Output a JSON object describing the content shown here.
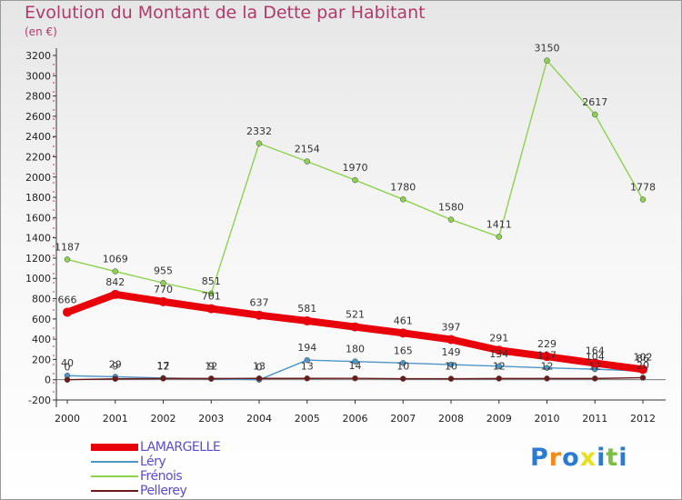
{
  "title": "Evolution du Montant de la Dette par Habitant",
  "unit_label": "(en €)",
  "brand": {
    "letters": [
      "P",
      "r",
      "o",
      "x",
      "i",
      "t",
      "i"
    ],
    "colors": [
      "#2b7bd3",
      "#f08c1a",
      "#2b7bd3",
      "#e8e01f",
      "#2b7bd3",
      "#7ac142",
      "#2b7bd3"
    ]
  },
  "chart_data": {
    "type": "line",
    "x": [
      "2000",
      "2001",
      "2002",
      "2003",
      "2004",
      "2005",
      "2006",
      "2007",
      "2008",
      "2009",
      "2010",
      "2011",
      "2012"
    ],
    "ylim": [
      -200,
      3200
    ],
    "yticks": [
      -200,
      0,
      200,
      400,
      600,
      800,
      1000,
      1200,
      1400,
      1600,
      1800,
      2000,
      2200,
      2400,
      2600,
      2800,
      3000,
      3200
    ],
    "grid": false,
    "legend_position": "bottom-left",
    "series": [
      {
        "name": "LAMARGELLE",
        "color": "#e8000b",
        "emphasis": true,
        "values": [
          666,
          842,
          770,
          701,
          637,
          581,
          521,
          461,
          397,
          291,
          229,
          164,
          102
        ]
      },
      {
        "name": "Léry",
        "color": "#4f95c8",
        "emphasis": false,
        "values": [
          40,
          29,
          17,
          9,
          0,
          194,
          180,
          165,
          149,
          134,
          117,
          104,
          86
        ]
      },
      {
        "name": "Frénois",
        "color": "#8ed14f",
        "emphasis": false,
        "values": [
          1187,
          1069,
          955,
          851,
          2332,
          2154,
          1970,
          1780,
          1580,
          1411,
          3150,
          2617,
          1778
        ]
      },
      {
        "name": "Pellerey",
        "color": "#6b1b1b",
        "emphasis": false,
        "values": [
          0,
          9,
          12,
          12,
          13,
          13,
          14,
          10,
          10,
          12,
          12,
          12,
          20
        ]
      }
    ]
  }
}
